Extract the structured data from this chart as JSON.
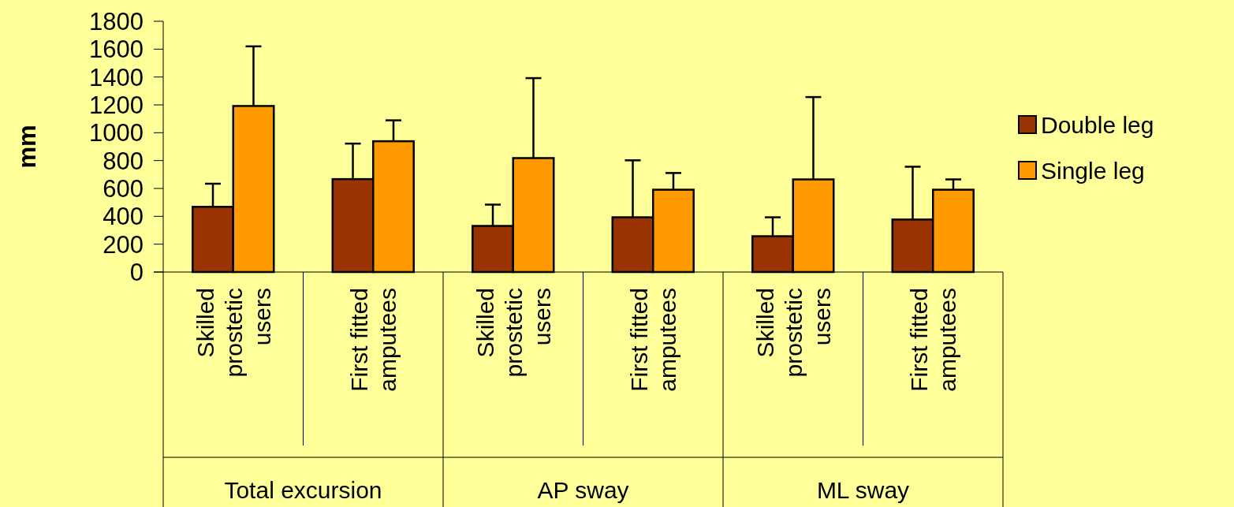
{
  "chart_data": {
    "type": "bar",
    "ylabel": "mm",
    "categories": [
      "Skilled\nprostetic\nusers",
      "First fitted\namputees",
      "Skilled\nprostetic\nusers",
      "First fitted\namputees",
      "Skilled\nprostetic\nusers",
      "First fitted\namputees"
    ],
    "series": [
      {
        "name": "Double leg",
        "color": "#993300",
        "values": [
          468,
          667,
          331,
          393,
          257,
          377
        ],
        "errors": [
          [
            468,
            634
          ],
          [
            667,
            922
          ],
          [
            331,
            484
          ],
          [
            393,
            802
          ],
          [
            257,
            393
          ],
          [
            377,
            756
          ]
        ]
      },
      {
        "name": "Single leg",
        "color": "#ff9900",
        "values": [
          1192,
          939,
          818,
          591,
          665,
          591
        ],
        "errors": [
          [
            1192,
            1620
          ],
          [
            939,
            1089
          ],
          [
            818,
            1392
          ],
          [
            591,
            711
          ],
          [
            665,
            1256
          ],
          [
            591,
            665
          ]
        ]
      }
    ],
    "annotations": [
      "Total excursion",
      "AP sway",
      "ML sway"
    ],
    "ylim": [
      0,
      1800
    ],
    "yticks": [
      0,
      200,
      400,
      600,
      800,
      1000,
      1200,
      1400,
      1600,
      1800
    ],
    "grid": false,
    "legend": "right"
  }
}
